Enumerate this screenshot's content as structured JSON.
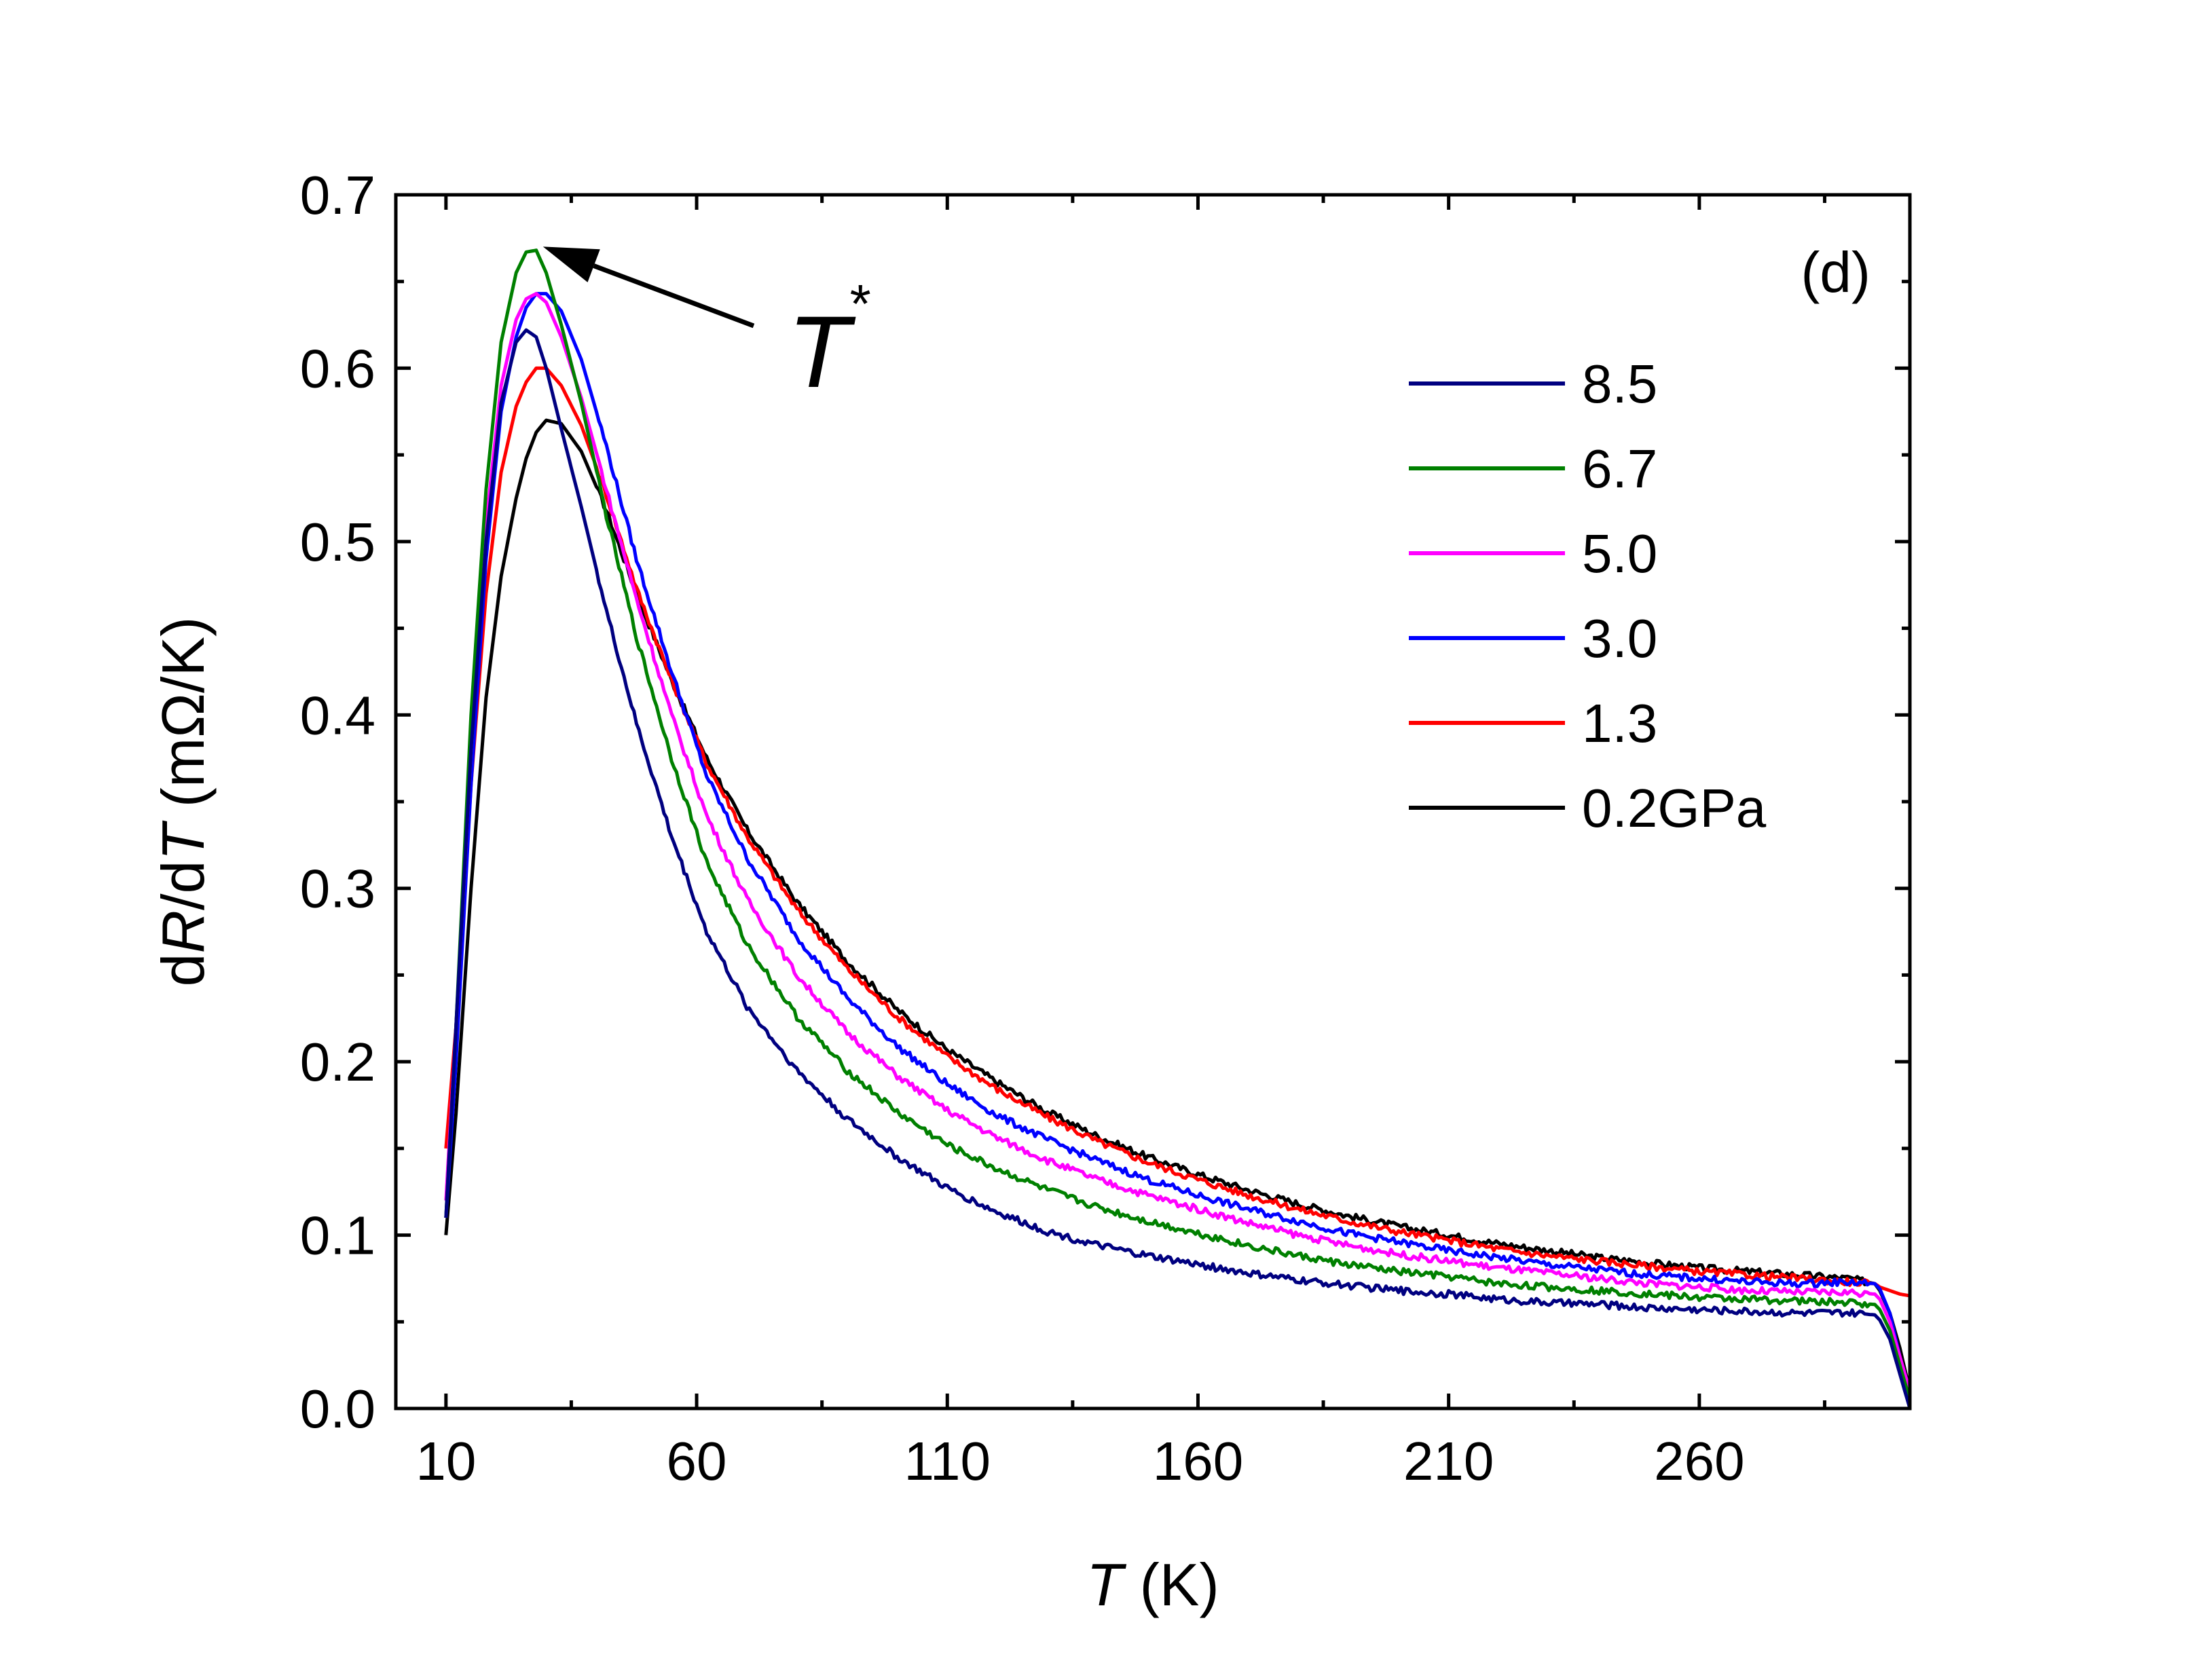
{
  "chart_data": {
    "type": "line",
    "title": "",
    "panel_label": "(d)",
    "xlabel": {
      "symbol": "T",
      "unit": " (K)"
    },
    "ylabel": {
      "prefix": "d",
      "sym1": "R",
      "mid": "/d",
      "sym2": "T",
      "unit": " (mΩ/K)"
    },
    "xlim": [
      0,
      302
    ],
    "ylim": [
      0.0,
      0.7
    ],
    "xticks": [
      10,
      60,
      110,
      160,
      210,
      260
    ],
    "xtick_labels": [
      "10",
      "60",
      "110",
      "160",
      "210",
      "260"
    ],
    "yticks": [
      0.0,
      0.1,
      0.2,
      0.3,
      0.4,
      0.5,
      0.6,
      0.7
    ],
    "ytick_labels": [
      "0.0",
      "0.1",
      "0.2",
      "0.3",
      "0.4",
      "0.5",
      "0.6",
      "0.7"
    ],
    "legend_position": "top-right",
    "annotation": {
      "text": "T",
      "superscript": "*",
      "points_to": {
        "x": 28,
        "y": 0.674
      }
    },
    "series": [
      {
        "name": "8.5",
        "color": "#000080",
        "x": [
          10,
          12,
          15,
          18,
          21,
          24,
          26,
          28,
          30,
          33,
          37,
          42,
          48,
          55,
          62,
          70,
          80,
          90,
          100,
          110,
          120,
          130,
          140,
          150,
          160,
          170,
          180,
          190,
          200,
          210,
          220,
          230,
          240,
          250,
          260,
          270,
          280,
          290,
          295,
          296,
          298,
          300,
          302
        ],
        "values": [
          0.11,
          0.22,
          0.38,
          0.5,
          0.58,
          0.615,
          0.622,
          0.618,
          0.6,
          0.565,
          0.52,
          0.46,
          0.395,
          0.33,
          0.275,
          0.232,
          0.195,
          0.167,
          0.145,
          0.127,
          0.113,
          0.102,
          0.094,
          0.088,
          0.083,
          0.078,
          0.074,
          0.071,
          0.068,
          0.066,
          0.063,
          0.061,
          0.06,
          0.058,
          0.057,
          0.056,
          0.055,
          0.055,
          0.054,
          0.051,
          0.04,
          0.02,
          0.0
        ]
      },
      {
        "name": "6.7",
        "color": "#008000",
        "x": [
          10,
          12,
          15,
          18,
          21,
          24,
          26,
          28,
          30,
          33,
          37,
          42,
          48,
          55,
          62,
          70,
          80,
          90,
          100,
          110,
          120,
          130,
          140,
          150,
          160,
          170,
          180,
          190,
          200,
          210,
          220,
          230,
          240,
          250,
          260,
          270,
          280,
          290,
          295,
          296,
          298,
          300,
          302
        ],
        "values": [
          0.11,
          0.22,
          0.4,
          0.53,
          0.615,
          0.655,
          0.667,
          0.668,
          0.655,
          0.625,
          0.58,
          0.515,
          0.445,
          0.375,
          0.315,
          0.268,
          0.226,
          0.195,
          0.171,
          0.152,
          0.138,
          0.126,
          0.116,
          0.108,
          0.101,
          0.094,
          0.088,
          0.083,
          0.079,
          0.076,
          0.072,
          0.07,
          0.068,
          0.066,
          0.064,
          0.063,
          0.062,
          0.061,
          0.06,
          0.057,
          0.045,
          0.025,
          0.005
        ]
      },
      {
        "name": "5.0",
        "color": "#FF00FF",
        "x": [
          10,
          12,
          15,
          18,
          21,
          24,
          26,
          28,
          30,
          33,
          37,
          42,
          48,
          55,
          62,
          70,
          80,
          90,
          100,
          110,
          120,
          130,
          140,
          150,
          160,
          170,
          180,
          190,
          200,
          210,
          220,
          230,
          240,
          250,
          260,
          270,
          280,
          290,
          295,
          296,
          298,
          300,
          302
        ],
        "values": [
          0.12,
          0.22,
          0.38,
          0.51,
          0.59,
          0.628,
          0.64,
          0.643,
          0.638,
          0.618,
          0.583,
          0.53,
          0.467,
          0.4,
          0.342,
          0.294,
          0.25,
          0.217,
          0.192,
          0.172,
          0.156,
          0.143,
          0.132,
          0.123,
          0.115,
          0.107,
          0.1,
          0.094,
          0.089,
          0.085,
          0.081,
          0.078,
          0.075,
          0.072,
          0.07,
          0.068,
          0.067,
          0.067,
          0.066,
          0.063,
          0.05,
          0.03,
          0.01
        ]
      },
      {
        "name": "3.0",
        "color": "#0000FF",
        "x": [
          10,
          12,
          15,
          18,
          21,
          24,
          26,
          28,
          30,
          33,
          37,
          42,
          48,
          55,
          62,
          70,
          80,
          90,
          100,
          110,
          120,
          130,
          140,
          150,
          160,
          170,
          180,
          190,
          200,
          210,
          220,
          230,
          240,
          250,
          260,
          270,
          280,
          290,
          295,
          296,
          298,
          300,
          302
        ],
        "values": [
          0.11,
          0.2,
          0.36,
          0.49,
          0.575,
          0.618,
          0.635,
          0.643,
          0.643,
          0.633,
          0.605,
          0.555,
          0.49,
          0.425,
          0.365,
          0.318,
          0.272,
          0.237,
          0.209,
          0.187,
          0.169,
          0.155,
          0.143,
          0.132,
          0.123,
          0.115,
          0.108,
          0.101,
          0.096,
          0.091,
          0.087,
          0.083,
          0.08,
          0.077,
          0.075,
          0.073,
          0.072,
          0.073,
          0.072,
          0.069,
          0.055,
          0.03,
          0.01
        ]
      },
      {
        "name": "1.3",
        "color": "#FF0000",
        "x": [
          10,
          12,
          15,
          18,
          21,
          24,
          26,
          28,
          30,
          33,
          37,
          42,
          48,
          55,
          62,
          70,
          80,
          90,
          100,
          110,
          120,
          130,
          140,
          150,
          160,
          170,
          180,
          190,
          200,
          210,
          220,
          230,
          240,
          250,
          260,
          270,
          280,
          290,
          295,
          296,
          298,
          300,
          302
        ],
        "values": [
          0.15,
          0.22,
          0.36,
          0.47,
          0.54,
          0.578,
          0.592,
          0.6,
          0.6,
          0.59,
          0.567,
          0.527,
          0.473,
          0.42,
          0.372,
          0.33,
          0.288,
          0.254,
          0.226,
          0.203,
          0.184,
          0.168,
          0.154,
          0.142,
          0.132,
          0.123,
          0.115,
          0.108,
          0.102,
          0.097,
          0.092,
          0.088,
          0.085,
          0.082,
          0.079,
          0.077,
          0.075,
          0.073,
          0.072,
          0.07,
          0.068,
          0.066,
          0.065
        ]
      },
      {
        "name": "0.2GPa",
        "color": "#000000",
        "x": [
          10,
          12,
          15,
          18,
          21,
          24,
          26,
          28,
          30,
          33,
          37,
          42,
          48,
          55,
          62,
          70,
          80,
          90,
          100,
          110,
          120,
          130,
          140,
          150,
          160,
          170,
          180,
          190,
          200,
          210,
          220,
          230,
          240,
          250,
          260,
          270,
          280,
          290,
          295,
          296,
          298,
          300,
          302
        ],
        "values": [
          0.1,
          0.17,
          0.3,
          0.41,
          0.48,
          0.525,
          0.548,
          0.563,
          0.57,
          0.568,
          0.552,
          0.518,
          0.47,
          0.42,
          0.375,
          0.334,
          0.292,
          0.258,
          0.23,
          0.207,
          0.188,
          0.171,
          0.157,
          0.145,
          0.135,
          0.126,
          0.118,
          0.111,
          0.105,
          0.1,
          0.095,
          0.091,
          0.087,
          0.084,
          0.081,
          0.079,
          0.077,
          0.075,
          0.072,
          0.068,
          0.055,
          0.035,
          0.01
        ]
      }
    ]
  }
}
